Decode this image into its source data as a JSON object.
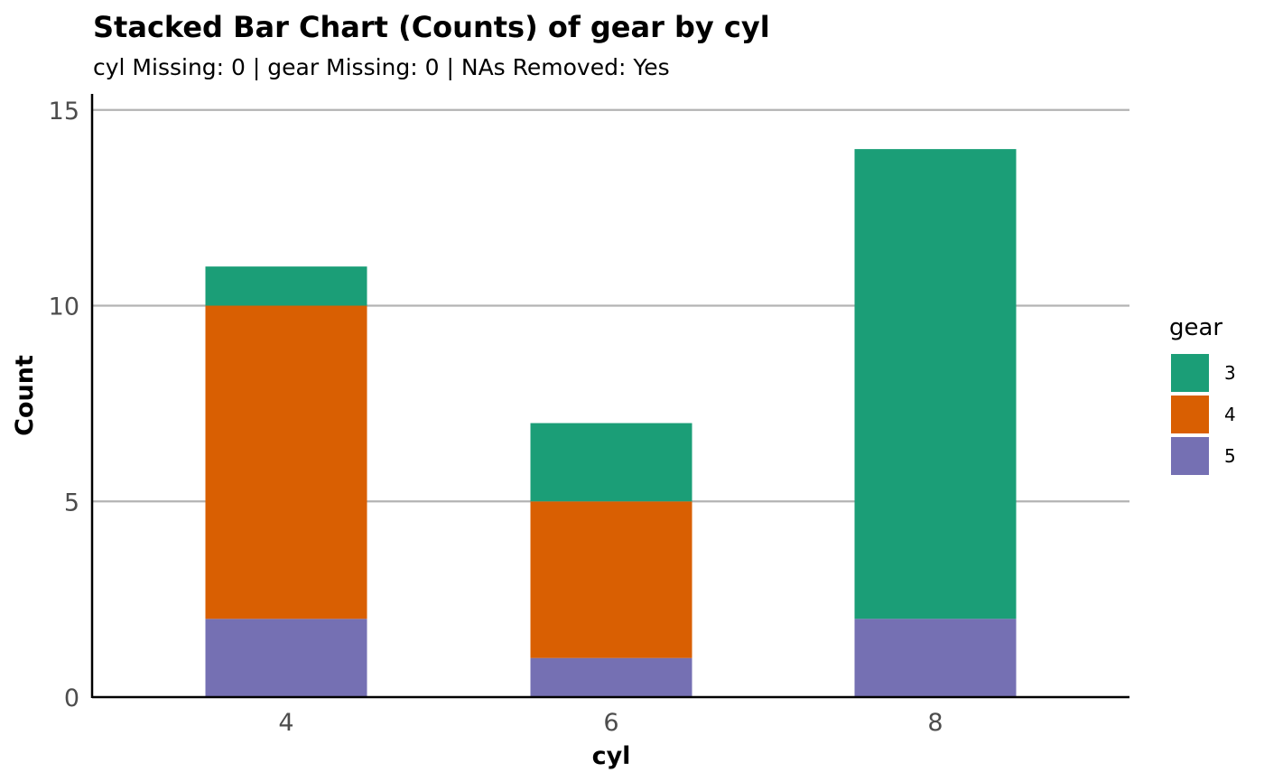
{
  "chart_data": {
    "type": "bar",
    "stacked": true,
    "title": "Stacked Bar Chart (Counts) of gear by cyl",
    "subtitle": "cyl Missing: 0 | gear Missing: 0 | NAs Removed: Yes",
    "xlabel": "cyl",
    "ylabel": "Count",
    "categories": [
      "4",
      "6",
      "8"
    ],
    "series": [
      {
        "name": "5",
        "color": "#7570B3",
        "values": [
          2,
          1,
          2
        ]
      },
      {
        "name": "4",
        "color": "#D95F02",
        "values": [
          8,
          4,
          0
        ]
      },
      {
        "name": "3",
        "color": "#1B9E77",
        "values": [
          1,
          2,
          12
        ]
      }
    ],
    "ylim": [
      0,
      15
    ],
    "yticks": [
      "0",
      "5",
      "10",
      "15"
    ],
    "grid": "horizontal",
    "legend": {
      "title": "gear",
      "position": "right",
      "entries": [
        {
          "label": "3",
          "color": "#1B9E77"
        },
        {
          "label": "4",
          "color": "#D95F02"
        },
        {
          "label": "5",
          "color": "#7570B3"
        }
      ]
    }
  }
}
